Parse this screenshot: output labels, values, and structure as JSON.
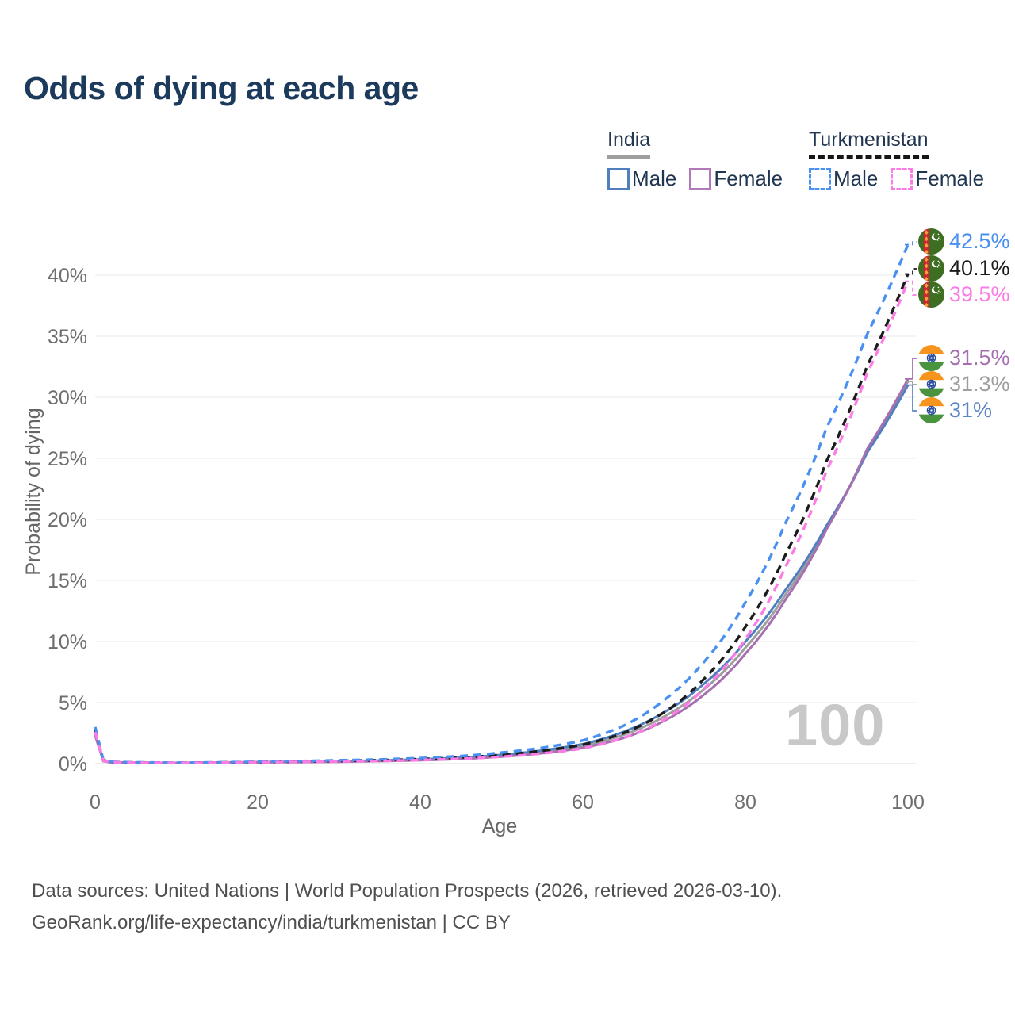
{
  "title": "Odds of dying at each age",
  "legend": {
    "groups": [
      {
        "name": "India",
        "underline_style": "solid",
        "underline_color": "#9e9e9e",
        "items": [
          {
            "label": "Male",
            "color": "#4f7fbe"
          },
          {
            "label": "Female",
            "color": "#b279b9"
          }
        ]
      },
      {
        "name": "Turkmenistan",
        "underline_style": "dashed",
        "underline_color": "#161616",
        "items": [
          {
            "label": "Male",
            "color": "#4a90f0"
          },
          {
            "label": "Female",
            "color": "#fb7ce4"
          }
        ]
      }
    ]
  },
  "chart_data": {
    "type": "line",
    "title": "Odds of dying at each age",
    "xlabel": "Age",
    "ylabel": "Probability of dying",
    "xlim": [
      0,
      100
    ],
    "ylim_percent": [
      0,
      44
    ],
    "grid": "horizontal",
    "x_ticks": [
      0,
      20,
      40,
      60,
      80,
      100
    ],
    "y_ticks": [
      {
        "value": 0,
        "label": "0%"
      },
      {
        "value": 5,
        "label": "5%"
      },
      {
        "value": 10,
        "label": "10%"
      },
      {
        "value": 15,
        "label": "15%"
      },
      {
        "value": 20,
        "label": "20%"
      },
      {
        "value": 25,
        "label": "25%"
      },
      {
        "value": 30,
        "label": "30%"
      },
      {
        "value": 35,
        "label": "35%"
      },
      {
        "value": 40,
        "label": "40%"
      }
    ],
    "watermark_age": "100",
    "series": [
      {
        "key": "india-total",
        "name": "India",
        "color": "#9e9e9e",
        "dashed": false,
        "points": [
          [
            0,
            2.4
          ],
          [
            1,
            0.21
          ],
          [
            2,
            0.1
          ],
          [
            5,
            0.075
          ],
          [
            10,
            0.055
          ],
          [
            15,
            0.08
          ],
          [
            20,
            0.115
          ],
          [
            25,
            0.14
          ],
          [
            30,
            0.18
          ],
          [
            35,
            0.23
          ],
          [
            40,
            0.31
          ],
          [
            45,
            0.44
          ],
          [
            50,
            0.65
          ],
          [
            55,
            0.97
          ],
          [
            60,
            1.45
          ],
          [
            65,
            2.35
          ],
          [
            70,
            3.85
          ],
          [
            75,
            6.15
          ],
          [
            80,
            9.5
          ],
          [
            85,
            13.9
          ],
          [
            90,
            19.3
          ],
          [
            95,
            25.6
          ],
          [
            100,
            31.3
          ]
        ]
      },
      {
        "key": "india-male",
        "name": "India Male",
        "color": "#4f7fbe",
        "dashed": false,
        "points": [
          [
            0,
            2.5
          ],
          [
            1,
            0.22
          ],
          [
            2,
            0.11
          ],
          [
            5,
            0.08
          ],
          [
            10,
            0.06
          ],
          [
            15,
            0.09
          ],
          [
            20,
            0.13
          ],
          [
            25,
            0.16
          ],
          [
            30,
            0.2
          ],
          [
            35,
            0.26
          ],
          [
            40,
            0.35
          ],
          [
            45,
            0.49
          ],
          [
            50,
            0.72
          ],
          [
            55,
            1.08
          ],
          [
            60,
            1.6
          ],
          [
            65,
            2.6
          ],
          [
            70,
            4.2
          ],
          [
            75,
            6.6
          ],
          [
            80,
            10.0
          ],
          [
            85,
            14.3
          ],
          [
            90,
            19.5
          ],
          [
            95,
            25.5
          ],
          [
            100,
            31.0
          ]
        ]
      },
      {
        "key": "india-female",
        "name": "India Female",
        "color": "#a66fb0",
        "dashed": false,
        "points": [
          [
            0,
            2.3
          ],
          [
            1,
            0.2
          ],
          [
            2,
            0.1
          ],
          [
            5,
            0.07
          ],
          [
            10,
            0.05
          ],
          [
            15,
            0.07
          ],
          [
            20,
            0.1
          ],
          [
            25,
            0.12
          ],
          [
            30,
            0.15
          ],
          [
            35,
            0.2
          ],
          [
            40,
            0.27
          ],
          [
            45,
            0.38
          ],
          [
            50,
            0.57
          ],
          [
            55,
            0.85
          ],
          [
            60,
            1.3
          ],
          [
            65,
            2.1
          ],
          [
            70,
            3.5
          ],
          [
            75,
            5.7
          ],
          [
            80,
            9.0
          ],
          [
            85,
            13.5
          ],
          [
            90,
            19.2
          ],
          [
            95,
            25.8
          ],
          [
            100,
            31.5
          ]
        ]
      },
      {
        "key": "tkm-total",
        "name": "Turkmenistan",
        "color": "#1c1c1c",
        "dashed": true,
        "points": [
          [
            0,
            2.8
          ],
          [
            1,
            0.27
          ],
          [
            2,
            0.13
          ],
          [
            5,
            0.09
          ],
          [
            10,
            0.07
          ],
          [
            15,
            0.09
          ],
          [
            20,
            0.13
          ],
          [
            25,
            0.17
          ],
          [
            30,
            0.22
          ],
          [
            35,
            0.28
          ],
          [
            40,
            0.37
          ],
          [
            45,
            0.5
          ],
          [
            50,
            0.72
          ],
          [
            55,
            1.05
          ],
          [
            60,
            1.55
          ],
          [
            65,
            2.5
          ],
          [
            70,
            4.2
          ],
          [
            75,
            7.0
          ],
          [
            80,
            11.2
          ],
          [
            85,
            17.2
          ],
          [
            90,
            24.8
          ],
          [
            95,
            32.6
          ],
          [
            100,
            40.1
          ]
        ]
      },
      {
        "key": "tkm-male",
        "name": "Turkmenistan Male",
        "color": "#4a90f0",
        "dashed": true,
        "points": [
          [
            0,
            3.0
          ],
          [
            1,
            0.3
          ],
          [
            2,
            0.15
          ],
          [
            5,
            0.1
          ],
          [
            10,
            0.08
          ],
          [
            15,
            0.1
          ],
          [
            20,
            0.16
          ],
          [
            25,
            0.21
          ],
          [
            30,
            0.27
          ],
          [
            35,
            0.34
          ],
          [
            40,
            0.45
          ],
          [
            45,
            0.62
          ],
          [
            50,
            0.9
          ],
          [
            55,
            1.3
          ],
          [
            60,
            1.9
          ],
          [
            65,
            3.1
          ],
          [
            70,
            5.2
          ],
          [
            75,
            8.4
          ],
          [
            80,
            13.2
          ],
          [
            85,
            19.8
          ],
          [
            90,
            27.5
          ],
          [
            95,
            35.2
          ],
          [
            100,
            42.5
          ]
        ]
      },
      {
        "key": "tkm-female",
        "name": "Turkmenistan Female",
        "color": "#fb7ce4",
        "dashed": true,
        "points": [
          [
            0,
            2.6
          ],
          [
            1,
            0.24
          ],
          [
            2,
            0.12
          ],
          [
            5,
            0.08
          ],
          [
            10,
            0.06
          ],
          [
            15,
            0.08
          ],
          [
            20,
            0.11
          ],
          [
            25,
            0.14
          ],
          [
            30,
            0.17
          ],
          [
            35,
            0.22
          ],
          [
            40,
            0.29
          ],
          [
            45,
            0.4
          ],
          [
            50,
            0.57
          ],
          [
            55,
            0.83
          ],
          [
            60,
            1.25
          ],
          [
            65,
            2.1
          ],
          [
            70,
            3.6
          ],
          [
            75,
            6.2
          ],
          [
            80,
            10.2
          ],
          [
            85,
            16.2
          ],
          [
            90,
            24.0
          ],
          [
            95,
            32.0
          ],
          [
            100,
            39.5
          ]
        ]
      }
    ],
    "end_labels": [
      {
        "text": "42.5%",
        "value": 42.5,
        "flag": "turkmenistan",
        "series_key": "tkm-male",
        "color": "#4a90f0"
      },
      {
        "text": "40.1%",
        "value": 40.1,
        "flag": "turkmenistan",
        "series_key": "tkm-total",
        "color": "#1c1c1c"
      },
      {
        "text": "39.5%",
        "value": 39.5,
        "flag": "turkmenistan",
        "series_key": "tkm-female",
        "color": "#fb7ce4"
      },
      {
        "text": "31.5%",
        "value": 31.5,
        "flag": "india",
        "series_key": "india-female",
        "color": "#a66fb0"
      },
      {
        "text": "31.3%",
        "value": 31.3,
        "flag": "india",
        "series_key": "india-total",
        "color": "#9e9e9e"
      },
      {
        "text": "31%",
        "value": 31.0,
        "flag": "india",
        "series_key": "india-male",
        "color": "#5b86c5"
      }
    ]
  },
  "footer": {
    "line1": "Data sources: United Nations | World Population Prospects (2026, retrieved 2026-03-10).",
    "line2": "GeoRank.org/life-expectancy/india/turkmenistan | CC BY"
  }
}
